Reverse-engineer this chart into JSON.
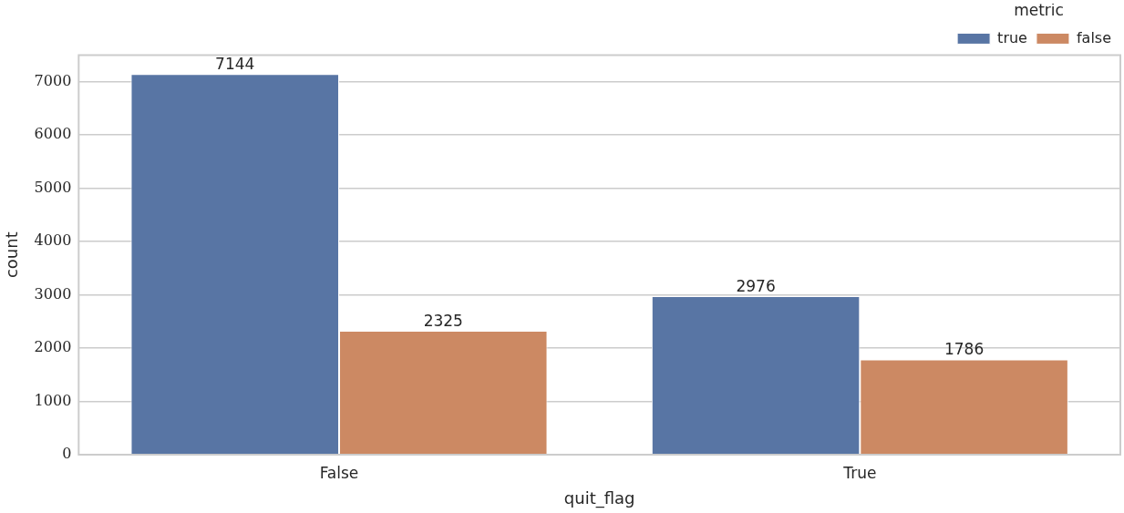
{
  "chart_data": {
    "type": "bar",
    "xlabel": "quit_flag",
    "ylabel": "count",
    "legend_title": "metric",
    "categories": [
      "False",
      "True"
    ],
    "series": [
      {
        "name": "true",
        "color": "#5875a4",
        "values": [
          7144,
          2976
        ]
      },
      {
        "name": "false",
        "color": "#cc8963",
        "values": [
          2325,
          1786
        ]
      }
    ],
    "ylim": [
      0,
      7500
    ],
    "yticks": [
      0,
      1000,
      2000,
      3000,
      4000,
      5000,
      6000,
      7000
    ],
    "grid": "y",
    "legend": "top right",
    "data_labels": true
  }
}
